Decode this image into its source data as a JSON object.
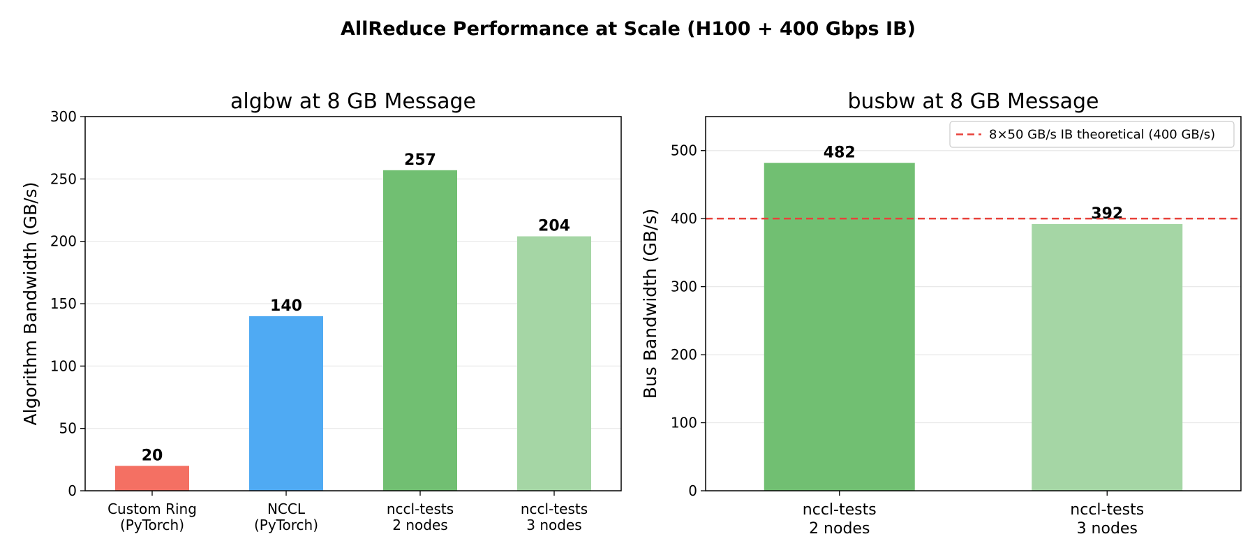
{
  "figure_title": "AllReduce Performance at Scale (H100 + 400 Gbps IB)",
  "chart_data": [
    {
      "type": "bar",
      "title": "algbw at 8 GB Message",
      "xlabel": "",
      "ylabel": "Algorithm Bandwidth (GB/s)",
      "ylim": [
        0,
        300
      ],
      "yticks": [
        0,
        50,
        100,
        150,
        200,
        250,
        300
      ],
      "grid": "y",
      "categories": [
        [
          "Custom Ring",
          "(PyTorch)"
        ],
        [
          "NCCL",
          "(PyTorch)"
        ],
        [
          "nccl-tests",
          "2 nodes"
        ],
        [
          "nccl-tests",
          "3 nodes"
        ]
      ],
      "values": [
        20,
        140,
        257,
        204
      ],
      "value_labels": [
        "20",
        "140",
        "257",
        "204"
      ],
      "colors": [
        "#f47063",
        "#4faaf3",
        "#71bf72",
        "#a5d6a5"
      ]
    },
    {
      "type": "bar",
      "title": "busbw at 8 GB Message",
      "xlabel": "",
      "ylabel": "Bus Bandwidth (GB/s)",
      "ylim": [
        0,
        550
      ],
      "yticks": [
        0,
        100,
        200,
        300,
        400,
        500
      ],
      "grid": "y",
      "categories": [
        [
          "nccl-tests",
          "2 nodes"
        ],
        [
          "nccl-tests",
          "3 nodes"
        ]
      ],
      "values": [
        482,
        392
      ],
      "value_labels": [
        "482",
        "392"
      ],
      "colors": [
        "#71bf72",
        "#a5d6a5"
      ],
      "reference_line": {
        "value": 400,
        "label": "8×50 GB/s IB theoretical (400 GB/s)",
        "color": "#e8423b",
        "style": "dashed"
      },
      "legend_position": "upper-right"
    }
  ]
}
